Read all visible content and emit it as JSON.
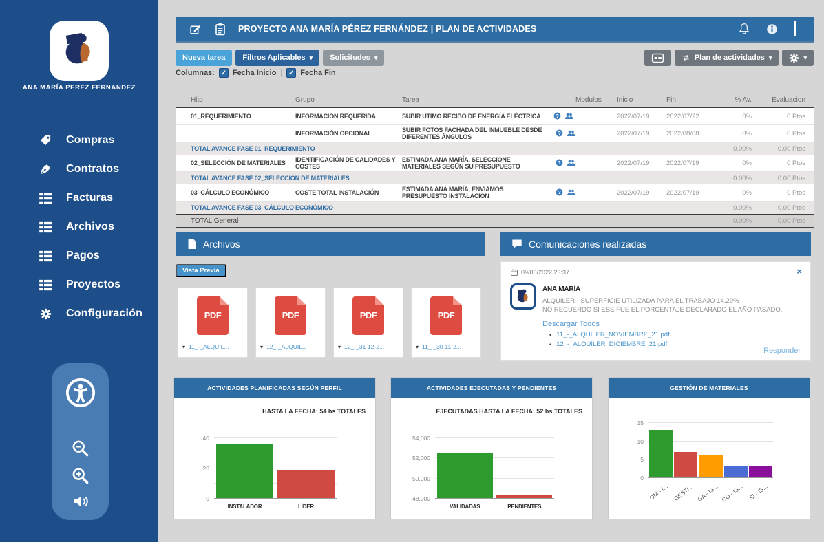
{
  "glyphs": {
    "check": "✓",
    "caret_down": "▾",
    "close": "×",
    "bullet": "•",
    "pipe": "|"
  },
  "sidebar": {
    "user_name": "ANA MARÍA PEREZ FERNANDEZ",
    "items": [
      {
        "key": "compras",
        "label": "Compras",
        "icon": "tag-icon"
      },
      {
        "key": "contratos",
        "label": "Contratos",
        "icon": "pen-icon"
      },
      {
        "key": "facturas",
        "label": "Facturas",
        "icon": "table-icon"
      },
      {
        "key": "archivos",
        "label": "Archivos",
        "icon": "table-icon"
      },
      {
        "key": "pagos",
        "label": "Pagos",
        "icon": "table-icon"
      },
      {
        "key": "proyectos",
        "label": "Proyectos",
        "icon": "table-icon"
      },
      {
        "key": "configuracion",
        "label": "Configuración",
        "icon": "gear-icon"
      }
    ]
  },
  "header": {
    "title": "PROYECTO ANA MARÍA PÉREZ FERNÁNDEZ | PLAN DE ACTIVIDADES"
  },
  "toolbar": {
    "new_task_label": "Nueva tarea",
    "filters_label": "Filtros Aplicables",
    "requests_label": "Solicitudes",
    "plan_label": "Plan de actividades",
    "columns_label": "Columnas:",
    "checkboxes": [
      {
        "label": "Fecha Inicio",
        "checked": true
      },
      {
        "label": "Fecha Fin",
        "checked": true
      }
    ]
  },
  "table": {
    "headers": [
      "Hito",
      "Grupo",
      "Tarea",
      "Modulos",
      "Inicio",
      "Fin",
      "% Av.",
      "Evaluacion"
    ],
    "rows": [
      {
        "type": "task",
        "hito": "01_REQUERIMIENTO",
        "grupo": "INFORMACIÓN REQUERIDA",
        "tarea": "SUBIR ÚTIMO RECIBO DE ENERGÍA ELÉCTRICA",
        "inicio": "2022/07/19",
        "fin": "2022/07/22",
        "avance": "0%",
        "evaluacion": "0 Ptos"
      },
      {
        "type": "task",
        "hito": "",
        "grupo": "INFORMACIÓN OPCIONAL",
        "tarea": "SUBIR FOTOS FACHADA DEL INMUEBLE DESDE DIFERENTES ÁNGULOS",
        "inicio": "2022/07/19",
        "fin": "2022/08/08",
        "avance": "0%",
        "evaluacion": "0 Ptos"
      },
      {
        "type": "total",
        "label": "TOTAL AVANCE FASE 01_REQUERIMIENTO",
        "avance": "0.00%",
        "evaluacion": "0.00 Ptos"
      },
      {
        "type": "task",
        "hito": "02_SELECCIÓN DE MATERIALES",
        "grupo": "IDENTIFICACIÓN DE CALIDADES Y COSTES",
        "tarea": "ESTIMADA ANA MARÍA, SELECCIONE MATERIALES SEGÚN SU PRESUPUESTO",
        "inicio": "2022/07/19",
        "fin": "2022/07/19",
        "avance": "0%",
        "evaluacion": "0 Ptos"
      },
      {
        "type": "total",
        "label": "TOTAL AVANCE FASE 02_SELECCIÓN DE MATERIALES",
        "avance": "0.00%",
        "evaluacion": "0.00 Ptos"
      },
      {
        "type": "task",
        "hito": "03_CÁLCULO ECONÓMICO",
        "grupo": "COSTE TOTAL INSTALACIÓN",
        "tarea": "ESTIMADA ANA MARÍA, ENVIAMOS PRESUPUESTO INSTALACIÓN",
        "inicio": "2022/07/19",
        "fin": "2022/07/19",
        "avance": "0%",
        "evaluacion": "0 Ptos"
      },
      {
        "type": "total",
        "label": "TOTAL AVANCE FASE 03_CÁLCULO ECONÓMICO",
        "avance": "0.00%",
        "evaluacion": "0.00 Ptos"
      },
      {
        "type": "grand",
        "label": "TOTAL General",
        "avance": "0.00%",
        "evaluacion": "0.00 Ptos"
      }
    ]
  },
  "archivos": {
    "title": "Archivos",
    "preview_label": "Vista Previa",
    "pdf_label": "PDF",
    "files": [
      "11_-_ALQUIL...",
      "12_-_ALQUIL...",
      "12_-_31-12-2...",
      "11_-_30-11-2..."
    ]
  },
  "comunicaciones": {
    "title": "Comunicaciones realizadas",
    "message": {
      "datetime": "09/06/2022 23:37",
      "author": "ANA MARÍA",
      "body_line1": "ALQUILER - SUPERFICIE UTILIZADA PARA EL TRABAJO 14.29%-",
      "body_line2": "NO RECUERDO SI ESE FUE EL PORCENTAJE DECLARADO EL AÑO PASADO.",
      "download_all_label": "Descargar Todos",
      "attachments": [
        "11_-_ALQUILER_NOVIEMBRE_21.pdf",
        "12_-_ALQUILER_DICIEMBRE_21.pdf"
      ],
      "reply_label": "Responder"
    }
  },
  "chart_data": [
    {
      "type": "bar",
      "title": "ACTIVIDADES  PLANIFICADAS SEGÚN PERFIL",
      "note": "HASTA LA FECHA:  54 hs TOTALES",
      "categories": [
        "INSTALADOR",
        "LÍDER"
      ],
      "values": [
        36,
        18
      ],
      "bar_colors": [
        "#2d9b2d",
        "#cf4a42"
      ],
      "ylim": [
        0,
        40
      ],
      "yticks": [
        0,
        20,
        40
      ],
      "ytick_labels": [
        "0",
        "20",
        "40"
      ],
      "gridlines": [
        10,
        20,
        30,
        40
      ],
      "legend": "none",
      "grid": true
    },
    {
      "type": "bar",
      "title": "ACTIVIDADES  EJECUTADAS Y PENDIENTES",
      "note": "EJECUTADAS HASTA LA FECHA:  52 hs TOTALES",
      "categories": [
        "VALIDADAS",
        "PENDIENTES"
      ],
      "values": [
        52400,
        48250
      ],
      "bar_colors": [
        "#2d9b2d",
        "#cf4a42"
      ],
      "ylim": [
        48000,
        54000
      ],
      "yticks": [
        48000,
        50000,
        52000,
        54000
      ],
      "ytick_labels": [
        "48,000",
        "50,000",
        "52,000",
        "54,000"
      ],
      "gridlines": [
        49000,
        50000,
        51000,
        52000,
        53000,
        54000
      ],
      "legend": "none",
      "grid": true
    },
    {
      "type": "bar",
      "title": "GESTIÓN DE MATERIALES",
      "note": "",
      "categories": [
        "QM - I...",
        "GESTI...",
        "GA - IS...",
        "CO - IS...",
        "SI - IS..."
      ],
      "values": [
        13,
        7,
        6,
        3,
        3
      ],
      "bar_colors": [
        "#2d9b2d",
        "#cf4a42",
        "#ff9d00",
        "#4a6ad4",
        "#8a0f9b"
      ],
      "ylim": [
        0,
        15
      ],
      "yticks": [
        0,
        5,
        10,
        15
      ],
      "ytick_labels": [
        "0",
        "5",
        "10",
        "15"
      ],
      "gridlines": [
        5,
        10,
        15
      ],
      "legend": "none",
      "grid": true
    }
  ],
  "colors": {
    "sidebar_blue": "#1d4e89",
    "accent_blue": "#2e6da4",
    "light_blue_button": "#4aa4d9",
    "link_blue": "#4793c9",
    "pdf_red": "#de4c41",
    "bar_green": "#2d9b2d",
    "bar_red": "#cf4a42",
    "bar_orange": "#ff9d00",
    "bar_blue": "#4a6ad4",
    "bar_purple": "#8a0f9b"
  }
}
